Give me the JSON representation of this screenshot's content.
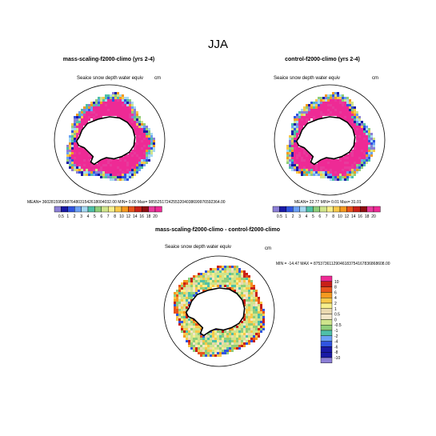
{
  "main_title": "JJA",
  "panels": [
    {
      "title": "mass-scaling-f2000-climo (yrs 2-4)",
      "variable_label": "Seaice snow depth water equiv",
      "units": "cm",
      "stats": "MEAN= 3602815956587648031542618004032.00  MIN=   0.00  Max= 98552517242553204038699976592364.00"
    },
    {
      "title": "control-f2000-climo (yrs 2-4)",
      "variable_label": "Seaice snow depth water equiv",
      "units": "cm",
      "stats": "MEAN=  22.77  MIN=   0.01  Max=  31.01"
    },
    {
      "title": "mass-scaling-f2000-climo - control-f2000-climo",
      "variable_label": "Seaice snow depth water equiv",
      "units": "cm",
      "stats": "MIN = -14.47 MAX = 87537361129046183754167836868608.00"
    }
  ],
  "colors": {
    "field_high": "#ee2a95",
    "land": "#ffffff",
    "coast": "#000000"
  },
  "chart_data": [
    {
      "type": "heatmap",
      "projection": "south-polar-stereographic",
      "title": "mass-scaling-f2000-climo (yrs 2-4)",
      "colorbar": {
        "orientation": "horizontal",
        "labels": [
          "0.5",
          "1",
          "2",
          "3",
          "4",
          "5",
          "6",
          "7",
          "8",
          "10",
          "12",
          "14",
          "16",
          "18",
          "20"
        ],
        "colors": [
          "#8c7fd6",
          "#1a1aa6",
          "#3154e0",
          "#6ba0f5",
          "#a5d8f2",
          "#4fc0a8",
          "#8fce7a",
          "#cfe48c",
          "#f7ef8c",
          "#f9c94a",
          "#f59a20",
          "#e8541c",
          "#c82018",
          "#8e1010",
          "#e83a9c",
          "#ee2a95"
        ]
      },
      "values_summary": {
        "mean": "3602815956587648031542618004032.00",
        "min": "0.00",
        "max": "98552517242553204038699976592364.00"
      }
    },
    {
      "type": "heatmap",
      "projection": "south-polar-stereographic",
      "title": "control-f2000-climo (yrs 2-4)",
      "colorbar": {
        "orientation": "horizontal",
        "labels": [
          "0.5",
          "1",
          "2",
          "3",
          "4",
          "5",
          "6",
          "7",
          "8",
          "10",
          "12",
          "14",
          "16",
          "18",
          "20"
        ],
        "colors": [
          "#8c7fd6",
          "#1a1aa6",
          "#3154e0",
          "#6ba0f5",
          "#a5d8f2",
          "#4fc0a8",
          "#8fce7a",
          "#cfe48c",
          "#f7ef8c",
          "#f9c94a",
          "#f59a20",
          "#e8541c",
          "#c82018",
          "#8e1010",
          "#e83a9c",
          "#ee2a95"
        ]
      },
      "values_summary": {
        "mean": "22.77",
        "min": "0.01",
        "max": "31.01"
      }
    },
    {
      "type": "heatmap",
      "projection": "south-polar-stereographic",
      "title": "mass-scaling-f2000-climo - control-f2000-climo",
      "colorbar": {
        "orientation": "vertical",
        "labels": [
          "10",
          "8",
          "6",
          "4",
          "2",
          "1",
          "0.5",
          "0",
          "-0.5",
          "-1",
          "-2",
          "-4",
          "-6",
          "-8",
          "-10"
        ],
        "colors": [
          "#ee2a95",
          "#c82018",
          "#e8541c",
          "#f59a20",
          "#f9c94a",
          "#f7ef8c",
          "#ead9b0",
          "#f2e6c8",
          "#cfe48c",
          "#8fce7a",
          "#4fc0a8",
          "#6ba0f5",
          "#3154e0",
          "#1a1aa6",
          "#1a1aa6",
          "#8c7fd6"
        ]
      },
      "values_summary": {
        "min": "-14.47",
        "max": "87537361129046183754167836868608.00"
      }
    }
  ]
}
